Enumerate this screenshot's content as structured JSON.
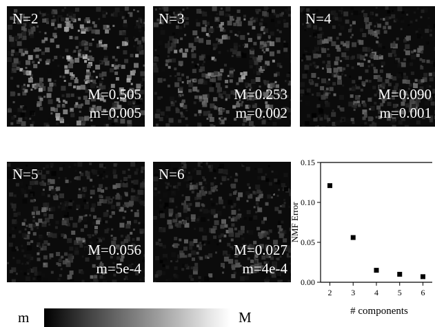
{
  "panels": [
    {
      "n": "N=2",
      "max": "M=0.505",
      "min": "m=0.005",
      "brightness": 0.505
    },
    {
      "n": "N=3",
      "max": "M=0.253",
      "min": "m=0.002",
      "brightness": 0.253
    },
    {
      "n": "N=4",
      "max": "M=0.090",
      "min": "m=0.001",
      "brightness": 0.09
    },
    {
      "n": "N=5",
      "max": "M=0.056",
      "min": "m=5e-4",
      "brightness": 0.056
    },
    {
      "n": "N=6",
      "max": "M=0.027",
      "min": "m=4e-4",
      "brightness": 0.027
    }
  ],
  "colorbar": {
    "min_label": "m",
    "max_label": "M"
  },
  "chart_data": {
    "type": "scatter",
    "title": "",
    "xlabel": "# components",
    "ylabel": "NMF Error",
    "x": [
      2,
      3,
      4,
      5,
      6
    ],
    "y": [
      0.121,
      0.056,
      0.015,
      0.01,
      0.007
    ],
    "xticks": [
      "2",
      "3",
      "4",
      "5",
      "6"
    ],
    "yticks": [
      "0.00",
      "0.05",
      "0.10",
      "0.15"
    ],
    "xlim": [
      1.6,
      6.4
    ],
    "ylim": [
      0,
      0.15
    ],
    "marker": "square",
    "color": "#000000",
    "grid": false
  }
}
